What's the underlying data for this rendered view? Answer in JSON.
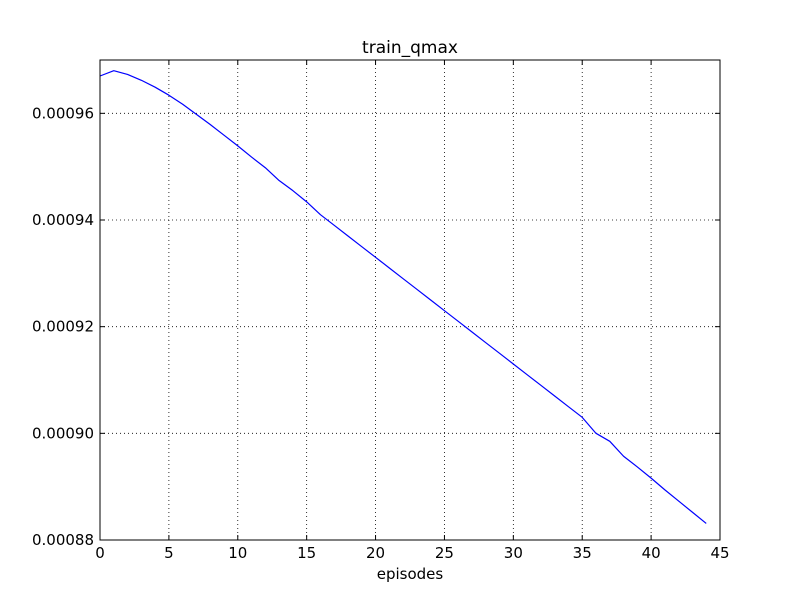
{
  "chart_data": {
    "type": "line",
    "title": "train_qmax",
    "xlabel": "episodes",
    "ylabel": "",
    "xlim": [
      0,
      45
    ],
    "ylim": [
      0.00088,
      0.00097
    ],
    "grid": true,
    "grid_style": "dotted",
    "legend": "none",
    "x_ticks": [
      0,
      5,
      10,
      15,
      20,
      25,
      30,
      35,
      40,
      45
    ],
    "x_tick_labels": [
      "0",
      "5",
      "10",
      "15",
      "20",
      "25",
      "30",
      "35",
      "40",
      "45"
    ],
    "y_ticks": [
      0.00088,
      0.0009,
      0.00092,
      0.00094,
      0.00096
    ],
    "y_tick_labels": [
      "0.00088",
      "0.00090",
      "0.00092",
      "0.00094",
      "0.00096"
    ],
    "series": [
      {
        "color": "#0000ff",
        "x": [
          0,
          1,
          2,
          3,
          4,
          5,
          6,
          7,
          8,
          9,
          10,
          11,
          12,
          13,
          14,
          15,
          16,
          17,
          18,
          19,
          20,
          21,
          22,
          23,
          24,
          25,
          26,
          27,
          28,
          29,
          30,
          31,
          32,
          33,
          34,
          35,
          36,
          37,
          38,
          39,
          40,
          41,
          42,
          43,
          44
        ],
        "values": [
          0.000967,
          0.000968,
          0.0009673,
          0.0009662,
          0.0009649,
          0.0009634,
          0.0009617,
          0.0009598,
          0.0009579,
          0.0009559,
          0.0009539,
          0.0009518,
          0.0009498,
          0.0009474,
          0.0009455,
          0.0009434,
          0.000941,
          0.000939,
          0.000937,
          0.000935,
          0.000933,
          0.000931,
          0.000929,
          0.000927,
          0.000925,
          0.000923,
          0.000921,
          0.000919,
          0.000917,
          0.000915,
          0.000913,
          0.000911,
          0.000909,
          0.000907,
          0.000905,
          0.000903,
          0.0009,
          0.0008985,
          0.0008957,
          0.0008937,
          0.0008916,
          0.0008894,
          0.0008873,
          0.0008852,
          0.0008831
        ]
      }
    ]
  }
}
